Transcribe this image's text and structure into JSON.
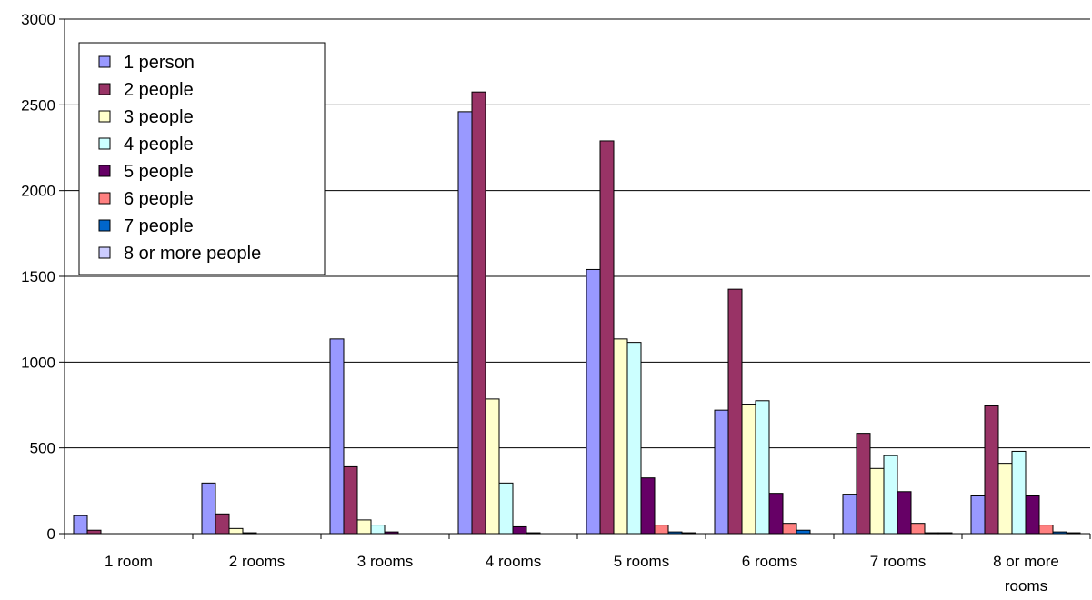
{
  "chart_data": {
    "type": "bar",
    "title": "",
    "xlabel": "",
    "ylabel": "",
    "ylim": [
      0,
      3000
    ],
    "yticks": [
      0,
      500,
      1000,
      1500,
      2000,
      2500,
      3000
    ],
    "grid": true,
    "legend_position": "top-left",
    "categories": [
      [
        "1 room"
      ],
      [
        "2 rooms"
      ],
      [
        "3 rooms"
      ],
      [
        "4 rooms"
      ],
      [
        "5 rooms"
      ],
      [
        "6 rooms"
      ],
      [
        "7 rooms"
      ],
      [
        "8 or more",
        "rooms"
      ]
    ],
    "series": [
      {
        "name": "1 person",
        "color": "#9999ff",
        "values": [
          105,
          295,
          1135,
          2460,
          1540,
          720,
          230,
          220
        ]
      },
      {
        "name": "2 people",
        "color": "#993366",
        "values": [
          20,
          115,
          390,
          2575,
          2290,
          1425,
          585,
          745
        ]
      },
      {
        "name": "3 people",
        "color": "#ffffcc",
        "values": [
          0,
          30,
          80,
          785,
          1135,
          755,
          380,
          410
        ]
      },
      {
        "name": "4 people",
        "color": "#ccffff",
        "values": [
          0,
          5,
          50,
          295,
          1115,
          775,
          455,
          480
        ]
      },
      {
        "name": "5 people",
        "color": "#660066",
        "values": [
          0,
          0,
          10,
          40,
          325,
          235,
          245,
          220
        ]
      },
      {
        "name": "6 people",
        "color": "#ff8080",
        "values": [
          0,
          0,
          0,
          5,
          50,
          60,
          60,
          50
        ]
      },
      {
        "name": "7 people",
        "color": "#0066cc",
        "values": [
          0,
          0,
          0,
          0,
          10,
          20,
          5,
          10
        ]
      },
      {
        "name": "8 or more people",
        "color": "#ccccff",
        "values": [
          0,
          0,
          0,
          0,
          5,
          0,
          5,
          5
        ]
      }
    ]
  }
}
